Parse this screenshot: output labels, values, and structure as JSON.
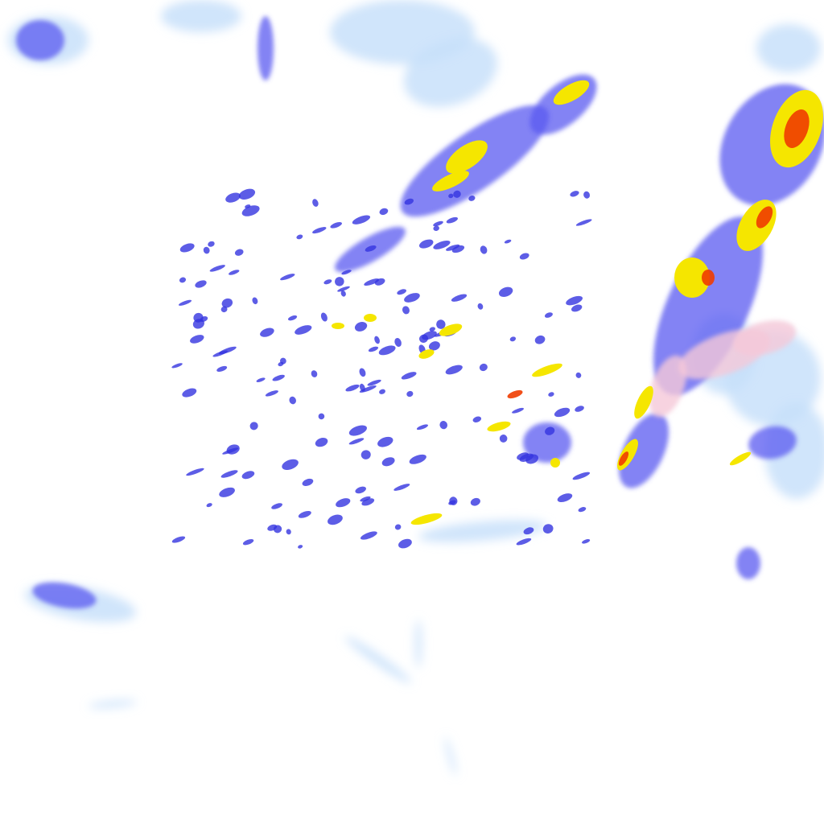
{
  "map": {
    "layer": "precipitation-radar",
    "palette": {
      "very_light": "#c8e0fa",
      "light": "#8fb8f5",
      "moderate": "#5a5af0",
      "heavy": "#3434e0",
      "intense": "#f5e600",
      "very_intense": "#f5a000",
      "extreme": "#f03c00",
      "mixed": "#f5c8d8"
    }
  }
}
